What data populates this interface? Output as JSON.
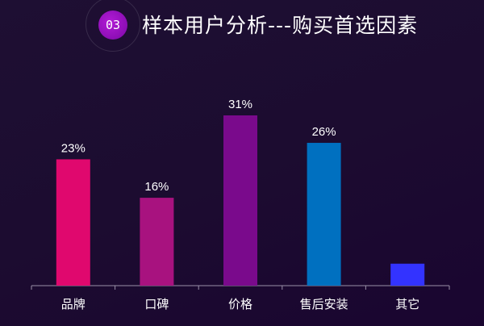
{
  "header": {
    "badge": "03",
    "title": "样本用户分析---购买首选因素"
  },
  "chart_data": {
    "type": "bar",
    "categories": [
      "品牌",
      "口碑",
      "价格",
      "售后安装",
      "其它"
    ],
    "values": [
      23,
      16,
      31,
      26,
      4
    ],
    "data_labels": [
      "23%",
      "16%",
      "31%",
      "26%",
      ""
    ],
    "colors": [
      "#e0086e",
      "#a8127f",
      "#7a0a8c",
      "#0070c0",
      "#3333ff"
    ],
    "ylim": [
      0,
      35
    ],
    "grid": false
  }
}
